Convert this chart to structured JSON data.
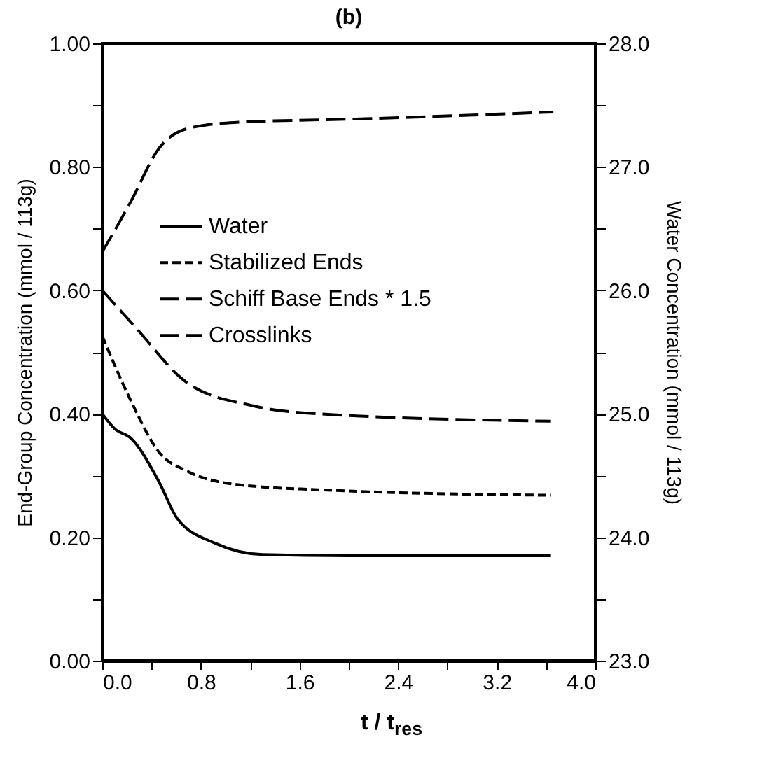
{
  "chart_data": {
    "type": "line",
    "title": "(b)",
    "xlabel": "t / t$_{res}$",
    "ylabel": "End-Group Concentration (mmol / 113g)",
    "y2label": "Water Concentration (mmol / 113g)",
    "xlim": [
      0,
      4
    ],
    "ylim": [
      0,
      1
    ],
    "y2lim": [
      23,
      28
    ],
    "xticks": [
      {
        "value": 0,
        "label": "0.0"
      },
      {
        "value": 0.4,
        "label": null
      },
      {
        "value": 0.8,
        "label": "0.8"
      },
      {
        "value": 1.2,
        "label": null
      },
      {
        "value": 1.6,
        "label": "1.6"
      },
      {
        "value": 2.0,
        "label": null
      },
      {
        "value": 2.4,
        "label": "2.4"
      },
      {
        "value": 2.8,
        "label": null
      },
      {
        "value": 3.2,
        "label": "3.2"
      },
      {
        "value": 3.6,
        "label": null
      },
      {
        "value": 4,
        "label": "4.0"
      }
    ],
    "yticks": [
      {
        "value": 0,
        "label": "0.00"
      },
      {
        "value": 0.1,
        "label": null
      },
      {
        "value": 0.2,
        "label": "0.20"
      },
      {
        "value": 0.3,
        "label": null
      },
      {
        "value": 0.4,
        "label": "0.40"
      },
      {
        "value": 0.5,
        "label": null
      },
      {
        "value": 0.6,
        "label": "0.60"
      },
      {
        "value": 0.7,
        "label": null
      },
      {
        "value": 0.8,
        "label": "0.80"
      },
      {
        "value": 0.9,
        "label": null
      },
      {
        "value": 1,
        "label": "1.00"
      }
    ],
    "y2ticks": [
      {
        "value": 23,
        "label": "23.0"
      },
      {
        "value": 23.5,
        "label": null
      },
      {
        "value": 24,
        "label": "24.0"
      },
      {
        "value": 24.5,
        "label": null
      },
      {
        "value": 25,
        "label": "25.0"
      },
      {
        "value": 25.5,
        "label": null
      },
      {
        "value": 26,
        "label": "26.0"
      },
      {
        "value": 26.5,
        "label": null
      },
      {
        "value": 27,
        "label": "27.0"
      },
      {
        "value": 27.5,
        "label": null
      },
      {
        "value": 28,
        "label": "28.0"
      }
    ],
    "legend": "left",
    "grid": false,
    "series": [
      {
        "name": "Water",
        "color": "#000000",
        "axis": "y2",
        "line_style": "solid",
        "x": [
          0,
          0.1,
          0.235,
          0.46,
          0.61,
          0.92,
          1.3,
          2.0,
          3.64
        ],
        "values": [
          25.0,
          24.88,
          24.8,
          24.45,
          24.15,
          23.95,
          23.86,
          23.85,
          23.85
        ]
      },
      {
        "name": "Stabilized Ends",
        "color": "#000000",
        "line_style": "dotted",
        "x": [
          0,
          0.235,
          0.46,
          0.69,
          1.07,
          1.75,
          3.64
        ],
        "values": [
          0.526,
          0.42,
          0.338,
          0.307,
          0.286,
          0.277,
          0.268
        ]
      },
      {
        "name": "Schiff Base Ends * 1.5",
        "color": "#000000",
        "line_style": "dashed",
        "x": [
          0,
          0.27,
          0.69,
          1.22,
          1.75,
          3.64
        ],
        "values": [
          0.6,
          0.54,
          0.45,
          0.413,
          0.4,
          0.388
        ]
      },
      {
        "name": "Crosslinks",
        "color": "#000000",
        "line_style": "dashed",
        "x": [
          0,
          0.235,
          0.46,
          0.69,
          1.07,
          2.13,
          3.66
        ],
        "values": [
          0.662,
          0.745,
          0.83,
          0.862,
          0.872,
          0.878,
          0.889
        ]
      }
    ]
  }
}
